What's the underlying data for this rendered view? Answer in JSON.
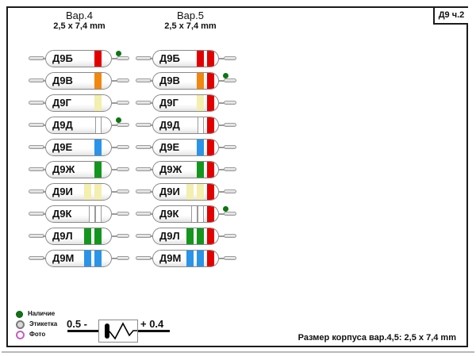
{
  "frame": {
    "corner_label": "Д9 ч.2",
    "footer_note": "Размер корпуса вар.4,5: 2,5 x 7,4 mm"
  },
  "columns": [
    {
      "id": "var4",
      "title": "Вар.4",
      "subtitle": "2,5 x 7,4 mm"
    },
    {
      "id": "var5",
      "title": "Вар.5",
      "subtitle": "2,5 x 7,4 mm"
    }
  ],
  "band_colors": {
    "red": "#e30000",
    "orange": "#f1870f",
    "yellow": "#f3efae",
    "blue": "#2a94e8",
    "green": "#14961e",
    "white": "#ffffff"
  },
  "dot_color": "#0d7512",
  "diodes": [
    {
      "label": "Д9Б",
      "var4": {
        "bands": [
          {
            "c": "red",
            "w": "wide"
          }
        ],
        "dot": true
      },
      "var5": {
        "bands": [
          {
            "c": "red",
            "w": "wide"
          },
          {
            "c": "red",
            "w": "wide"
          }
        ],
        "dot": false
      }
    },
    {
      "label": "Д9В",
      "var4": {
        "bands": [
          {
            "c": "orange",
            "w": "wide"
          }
        ],
        "dot": false
      },
      "var5": {
        "bands": [
          {
            "c": "orange",
            "w": "wide"
          },
          {
            "c": "red",
            "w": "wide"
          }
        ],
        "dot": true
      }
    },
    {
      "label": "Д9Г",
      "var4": {
        "bands": [
          {
            "c": "yellow",
            "w": "wide"
          }
        ],
        "dot": false
      },
      "var5": {
        "bands": [
          {
            "c": "yellow",
            "w": "wide"
          },
          {
            "c": "red",
            "w": "wide"
          }
        ],
        "dot": false
      }
    },
    {
      "label": "Д9Д",
      "var4": {
        "bands": [
          {
            "c": "white",
            "w": "narrow"
          }
        ],
        "dot": true
      },
      "var5": {
        "bands": [
          {
            "c": "white",
            "w": "narrow"
          },
          {
            "c": "red",
            "w": "wide"
          }
        ],
        "dot": false
      }
    },
    {
      "label": "Д9Е",
      "var4": {
        "bands": [
          {
            "c": "blue",
            "w": "wide"
          }
        ],
        "dot": false
      },
      "var5": {
        "bands": [
          {
            "c": "blue",
            "w": "wide"
          },
          {
            "c": "red",
            "w": "wide"
          }
        ],
        "dot": false
      }
    },
    {
      "label": "Д9Ж",
      "var4": {
        "bands": [
          {
            "c": "green",
            "w": "wide"
          }
        ],
        "dot": false
      },
      "var5": {
        "bands": [
          {
            "c": "green",
            "w": "wide"
          },
          {
            "c": "red",
            "w": "wide"
          }
        ],
        "dot": false
      }
    },
    {
      "label": "Д9И",
      "var4": {
        "bands": [
          {
            "c": "yellow",
            "w": "wide"
          },
          {
            "c": "yellow",
            "w": "wide"
          }
        ],
        "dot": false
      },
      "var5": {
        "bands": [
          {
            "c": "yellow",
            "w": "wide"
          },
          {
            "c": "yellow",
            "w": "wide"
          },
          {
            "c": "red",
            "w": "wide"
          }
        ],
        "dot": false
      }
    },
    {
      "label": "Д9К",
      "var4": {
        "bands": [
          {
            "c": "white",
            "w": "narrow"
          },
          {
            "c": "white",
            "w": "narrow"
          }
        ],
        "dot": false
      },
      "var5": {
        "bands": [
          {
            "c": "white",
            "w": "narrow"
          },
          {
            "c": "white",
            "w": "narrow"
          },
          {
            "c": "red",
            "w": "wide"
          }
        ],
        "dot": true
      }
    },
    {
      "label": "Д9Л",
      "var4": {
        "bands": [
          {
            "c": "green",
            "w": "wide"
          },
          {
            "c": "green",
            "w": "wide"
          }
        ],
        "dot": false
      },
      "var5": {
        "bands": [
          {
            "c": "green",
            "w": "wide"
          },
          {
            "c": "green",
            "w": "wide"
          },
          {
            "c": "red",
            "w": "wide"
          }
        ],
        "dot": false
      }
    },
    {
      "label": "Д9М",
      "var4": {
        "bands": [
          {
            "c": "blue",
            "w": "wide"
          },
          {
            "c": "blue",
            "w": "wide"
          }
        ],
        "dot": false
      },
      "var5": {
        "bands": [
          {
            "c": "blue",
            "w": "wide"
          },
          {
            "c": "blue",
            "w": "wide"
          },
          {
            "c": "red",
            "w": "wide"
          }
        ],
        "dot": false
      }
    }
  ],
  "legend": [
    {
      "label": "Наличие",
      "type": "availability",
      "color": "#0d7512"
    },
    {
      "label": "Этикетка",
      "type": "label",
      "color": "#7a7a7a"
    },
    {
      "label": "Фото",
      "type": "photo",
      "color": "#c55ec5"
    }
  ],
  "polarity": {
    "left_label": "0.5 -",
    "right_label": "+ 0.4"
  }
}
